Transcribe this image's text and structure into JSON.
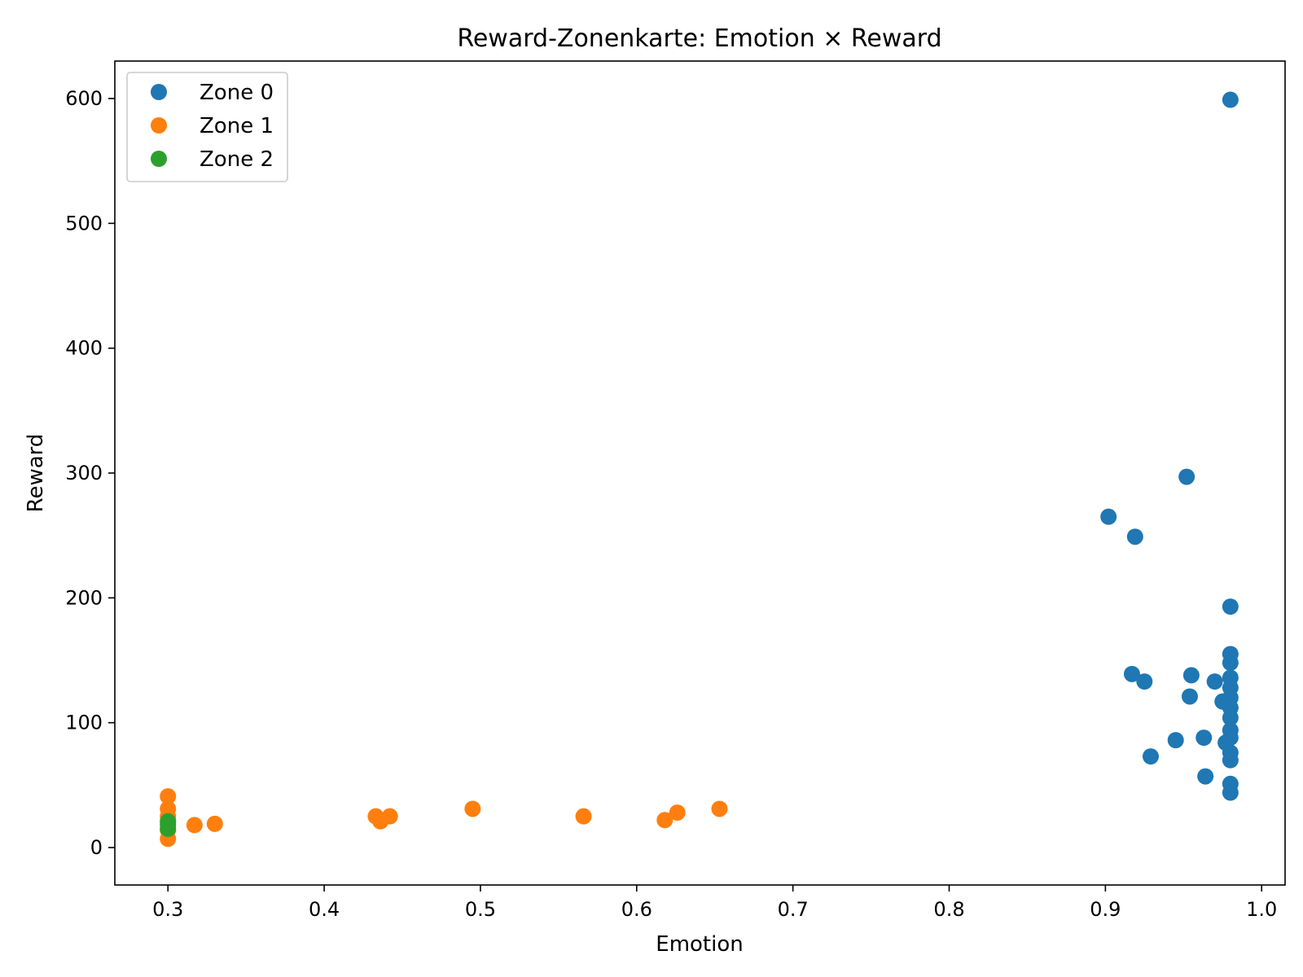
{
  "chart_data": {
    "type": "scatter",
    "title": "Reward-Zonenkarte: Emotion × Reward",
    "xlabel": "Emotion",
    "ylabel": "Reward",
    "xlim": [
      0.266,
      1.015
    ],
    "ylim": [
      -30,
      630
    ],
    "xticks": [
      0.3,
      0.4,
      0.5,
      0.6,
      0.7,
      0.8,
      0.9,
      1.0
    ],
    "xtick_labels": [
      "0.3",
      "0.4",
      "0.5",
      "0.6",
      "0.7",
      "0.8",
      "0.9",
      "1.0"
    ],
    "yticks": [
      0,
      100,
      200,
      300,
      400,
      500,
      600
    ],
    "ytick_labels": [
      "0",
      "100",
      "200",
      "300",
      "400",
      "500",
      "600"
    ],
    "grid": false,
    "legend_position": "top-left",
    "series": [
      {
        "name": "Zone 0",
        "color": "#1f77b4",
        "points": [
          [
            0.98,
            599
          ],
          [
            0.952,
            297
          ],
          [
            0.902,
            265
          ],
          [
            0.919,
            249
          ],
          [
            0.98,
            193
          ],
          [
            0.98,
            155
          ],
          [
            0.98,
            148
          ],
          [
            0.98,
            136
          ],
          [
            0.98,
            128
          ],
          [
            0.98,
            120
          ],
          [
            0.98,
            112
          ],
          [
            0.98,
            104
          ],
          [
            0.98,
            94
          ],
          [
            0.98,
            88
          ],
          [
            0.98,
            76
          ],
          [
            0.98,
            70
          ],
          [
            0.98,
            51
          ],
          [
            0.98,
            44
          ],
          [
            0.917,
            139
          ],
          [
            0.925,
            133
          ],
          [
            0.955,
            138
          ],
          [
            0.97,
            133
          ],
          [
            0.954,
            121
          ],
          [
            0.975,
            117
          ],
          [
            0.945,
            86
          ],
          [
            0.963,
            88
          ],
          [
            0.977,
            84
          ],
          [
            0.929,
            73
          ],
          [
            0.964,
            57
          ]
        ]
      },
      {
        "name": "Zone 1",
        "color": "#ff7f0e",
        "points": [
          [
            0.3,
            41
          ],
          [
            0.3,
            31
          ],
          [
            0.3,
            25
          ],
          [
            0.3,
            20
          ],
          [
            0.3,
            14
          ],
          [
            0.3,
            7
          ],
          [
            0.317,
            18
          ],
          [
            0.33,
            19
          ],
          [
            0.433,
            25
          ],
          [
            0.436,
            21
          ],
          [
            0.442,
            25
          ],
          [
            0.495,
            31
          ],
          [
            0.566,
            25
          ],
          [
            0.618,
            22
          ],
          [
            0.626,
            28
          ],
          [
            0.653,
            31
          ]
        ]
      },
      {
        "name": "Zone 2",
        "color": "#2ca02c",
        "points": [
          [
            0.3,
            21
          ],
          [
            0.3,
            18
          ],
          [
            0.3,
            15
          ]
        ]
      }
    ]
  }
}
